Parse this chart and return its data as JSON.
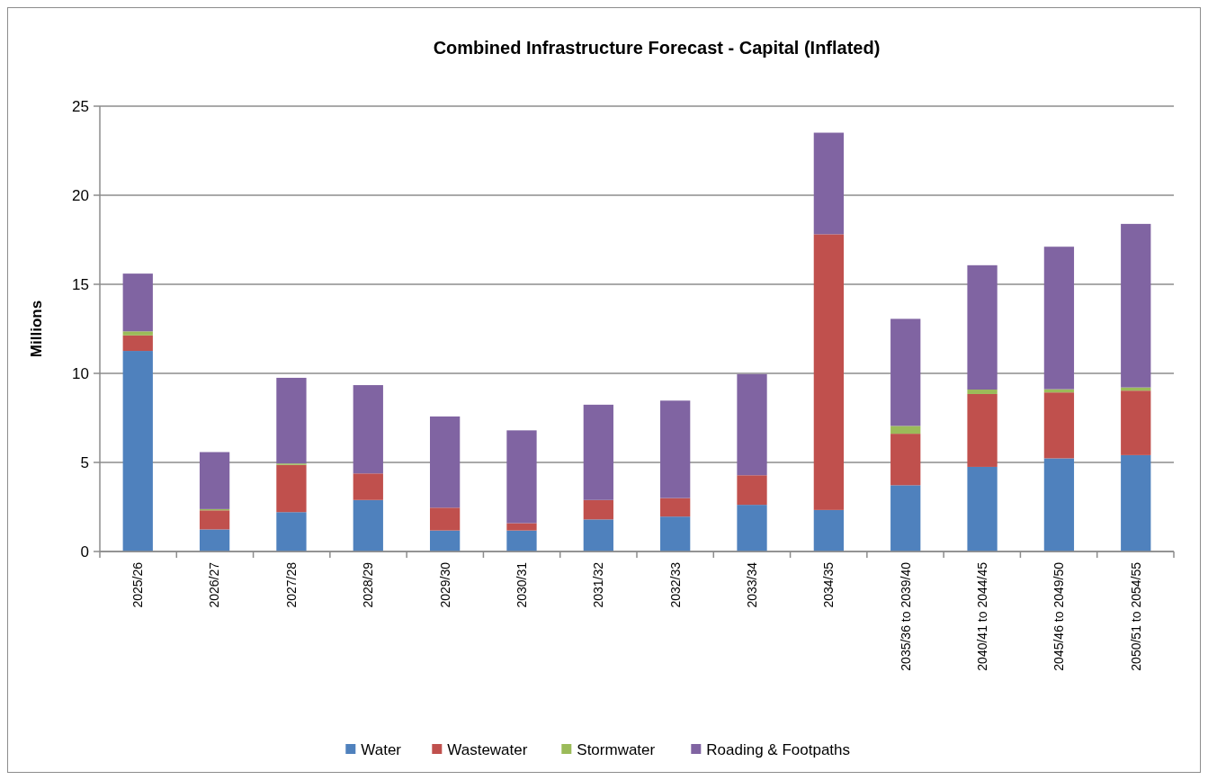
{
  "chart_data": {
    "type": "bar",
    "title": "Combined Infrastructure Forecast - Capital (Inflated)",
    "ylabel": "Millions",
    "stacked": true,
    "grid": "y",
    "legend": "bottom",
    "categories": [
      "2025/26",
      "2026/27",
      "2027/28",
      "2028/29",
      "2029/30",
      "2030/31",
      "2031/32",
      "2032/33",
      "2033/34",
      "2034/35",
      "2035/36 to 2039/40",
      "2040/41 to 2044/45",
      "2045/46 to 2049/50",
      "2050/51 to 2054/55"
    ],
    "ylim": [
      0,
      25
    ],
    "yticks": [
      0,
      5,
      10,
      15,
      20,
      25
    ],
    "series": [
      {
        "name": "Water",
        "color": "#4f81bd",
        "values": [
          11.26,
          1.24,
          2.21,
          2.89,
          1.18,
          1.18,
          1.8,
          1.96,
          2.62,
          2.33,
          3.72,
          4.75,
          5.23,
          5.41
        ]
      },
      {
        "name": "Wastewater",
        "color": "#c0504d",
        "values": [
          0.87,
          1.07,
          2.65,
          1.49,
          1.28,
          0.41,
          1.09,
          1.04,
          1.66,
          15.48,
          2.89,
          4.09,
          3.7,
          3.62
        ]
      },
      {
        "name": "Stormwater",
        "color": "#9bbb59",
        "values": [
          0.23,
          0.07,
          0.08,
          0,
          0,
          0,
          0,
          0,
          0,
          0,
          0.44,
          0.25,
          0.18,
          0.18
        ]
      },
      {
        "name": "Roading & Footpaths",
        "color": "#8064a2",
        "values": [
          3.24,
          3.2,
          4.81,
          4.96,
          5.12,
          5.21,
          5.35,
          5.47,
          5.68,
          5.7,
          6.01,
          6.98,
          8.0,
          9.18
        ]
      }
    ]
  }
}
